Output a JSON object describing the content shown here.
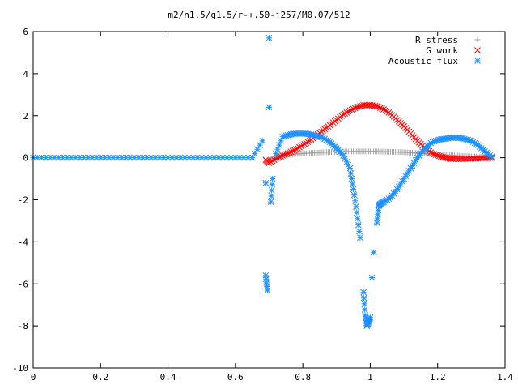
{
  "chart_data": {
    "type": "scatter",
    "title": "m2/n1.5/q1.5/r-+.50-j257/M0.07/512",
    "xlabel": "",
    "ylabel": "",
    "xlim": [
      0,
      1.4
    ],
    "ylim": [
      -10,
      6
    ],
    "x_ticks": [
      "0",
      "0.2",
      "0.4",
      "0.6",
      "0.8",
      "1",
      "1.2",
      "1.4"
    ],
    "y_ticks": [
      "-10",
      "-8",
      "-6",
      "-4",
      "-2",
      "0",
      "2",
      "4",
      "6"
    ],
    "grid": false,
    "legend": "top-right",
    "series": [
      {
        "name": "R stress",
        "marker": "plus",
        "color": "#a0a0a0",
        "x": [
          0.7,
          0.72,
          0.74,
          0.76,
          0.78,
          0.8,
          0.82,
          0.84,
          0.86,
          0.88,
          0.9,
          0.92,
          0.94,
          0.96,
          0.98,
          1.0,
          1.02,
          1.04,
          1.06,
          1.08,
          1.1,
          1.12,
          1.14,
          1.16,
          1.18,
          1.2,
          1.22,
          1.24,
          1.26,
          1.28,
          1.3,
          1.32,
          1.34,
          1.36
        ],
        "y": [
          -0.15,
          0.08,
          0.12,
          0.15,
          0.18,
          0.2,
          0.22,
          0.24,
          0.26,
          0.27,
          0.28,
          0.29,
          0.3,
          0.3,
          0.3,
          0.3,
          0.3,
          0.29,
          0.28,
          0.27,
          0.26,
          0.24,
          0.22,
          0.2,
          0.18,
          0.16,
          0.14,
          0.12,
          0.1,
          0.08,
          0.06,
          0.05,
          0.04,
          0.02
        ]
      },
      {
        "name": "G work",
        "marker": "cross",
        "color": "#ff0000",
        "x": [
          0.69,
          0.7,
          0.72,
          0.74,
          0.76,
          0.78,
          0.8,
          0.82,
          0.84,
          0.86,
          0.88,
          0.9,
          0.92,
          0.94,
          0.96,
          0.98,
          1.0,
          1.02,
          1.04,
          1.06,
          1.08,
          1.1,
          1.12,
          1.14,
          1.16,
          1.18,
          1.2,
          1.22,
          1.24,
          1.26,
          1.28,
          1.3,
          1.32,
          1.34,
          1.36
        ],
        "y": [
          -0.1,
          -0.25,
          -0.05,
          0.1,
          0.25,
          0.4,
          0.6,
          0.8,
          1.05,
          1.3,
          1.55,
          1.8,
          2.05,
          2.25,
          2.4,
          2.5,
          2.5,
          2.45,
          2.3,
          2.1,
          1.8,
          1.5,
          1.15,
          0.8,
          0.5,
          0.25,
          0.1,
          0.0,
          -0.05,
          -0.06,
          -0.05,
          -0.04,
          -0.03,
          -0.02,
          0.0
        ]
      },
      {
        "name": "Acoustic flux",
        "marker": "star",
        "color": "#1e90ff",
        "x": [
          0.0,
          0.05,
          0.1,
          0.15,
          0.2,
          0.25,
          0.3,
          0.35,
          0.4,
          0.45,
          0.5,
          0.55,
          0.6,
          0.65,
          0.68,
          0.69,
          0.69,
          0.695,
          0.7,
          0.7,
          0.705,
          0.71,
          0.72,
          0.74,
          0.76,
          0.78,
          0.8,
          0.82,
          0.84,
          0.86,
          0.88,
          0.9,
          0.92,
          0.94,
          0.95,
          0.96,
          0.97,
          0.98,
          0.985,
          0.99,
          0.995,
          1.0,
          1.005,
          1.01,
          1.02,
          1.025,
          1.03,
          1.04,
          1.06,
          1.08,
          1.1,
          1.12,
          1.14,
          1.16,
          1.18,
          1.2,
          1.22,
          1.24,
          1.26,
          1.28,
          1.3,
          1.32,
          1.34,
          1.36
        ],
        "y": [
          0,
          0,
          0,
          0,
          0,
          0,
          0,
          0,
          0,
          0,
          0,
          0,
          0,
          0,
          0.8,
          -1.2,
          -5.6,
          -6.3,
          5.7,
          2.4,
          -2.1,
          -1.0,
          0.2,
          1.0,
          1.1,
          1.15,
          1.15,
          1.12,
          1.05,
          0.95,
          0.75,
          0.45,
          0.1,
          -0.5,
          -1.5,
          -2.6,
          -3.8,
          -6.4,
          -7.5,
          -8.0,
          -7.8,
          -7.6,
          -5.7,
          -4.5,
          -3.1,
          -2.3,
          -2.2,
          -2.1,
          -1.9,
          -1.5,
          -1.0,
          -0.5,
          0.0,
          0.4,
          0.7,
          0.85,
          0.9,
          0.95,
          0.95,
          0.9,
          0.8,
          0.6,
          0.3,
          0.05
        ]
      }
    ]
  }
}
